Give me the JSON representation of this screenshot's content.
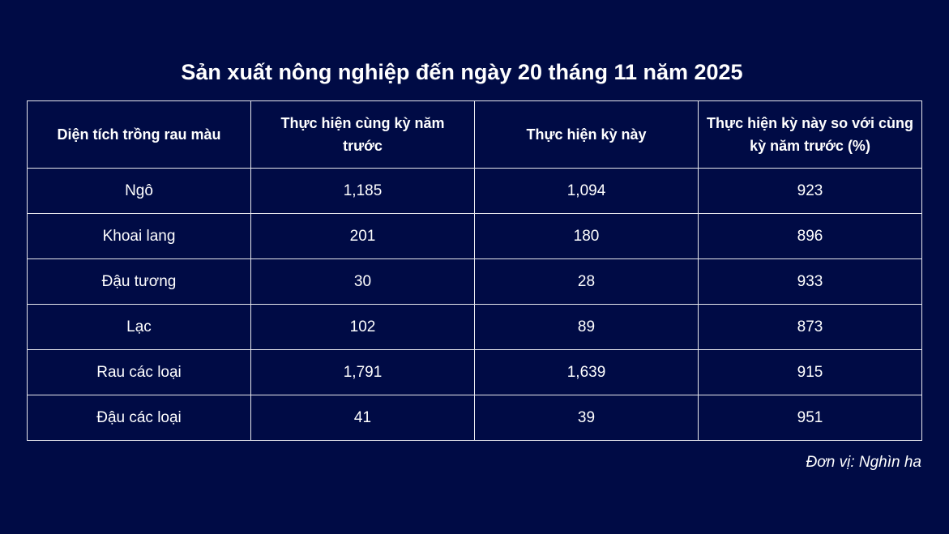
{
  "chart_data": {
    "type": "table",
    "title": "Sản xuất nông nghiệp đến ngày 20 tháng 11 năm 2025",
    "columns": [
      "Diện tích trồng rau màu",
      "Thực hiện cùng kỳ năm trước",
      "Thực hiện kỳ này",
      "Thực hiện kỳ này so với cùng kỳ năm trước (%)"
    ],
    "rows": [
      [
        "Ngô",
        "1,185",
        "1,094",
        "923"
      ],
      [
        "Khoai lang",
        "201",
        "180",
        "896"
      ],
      [
        "Đậu tương",
        "30",
        "28",
        "933"
      ],
      [
        "Lạc",
        "102",
        "89",
        "873"
      ],
      [
        "Rau các loại",
        "1,791",
        "1,639",
        "915"
      ],
      [
        "Đậu các loại",
        "41",
        "39",
        "951"
      ]
    ],
    "note": "Đơn vị: Nghìn ha"
  },
  "colors": {
    "background": "#000b45",
    "text": "#ffffff",
    "border": "#e8e8ee"
  }
}
